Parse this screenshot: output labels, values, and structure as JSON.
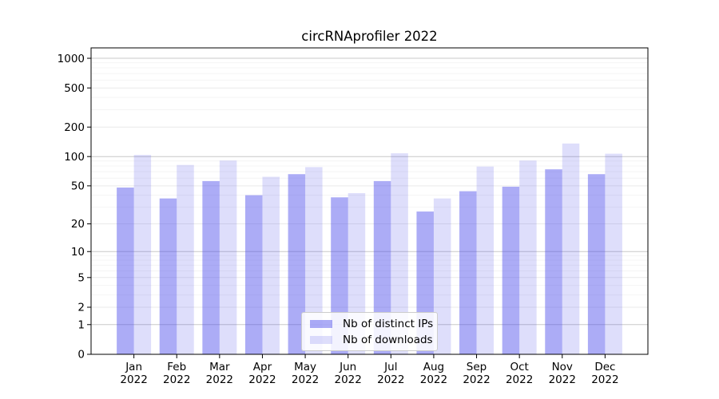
{
  "chart_data": {
    "type": "bar",
    "title": "circRNAprofiler 2022",
    "categories": [
      "Jan 2022",
      "Feb 2022",
      "Mar 2022",
      "Apr 2022",
      "May 2022",
      "Jun 2022",
      "Jul 2022",
      "Aug 2022",
      "Sep 2022",
      "Oct 2022",
      "Nov 2022",
      "Dec 2022"
    ],
    "series": [
      {
        "name": "Nb of distinct IPs",
        "color": "rgba(70,70,235,0.45)",
        "values": [
          48,
          37,
          56,
          40,
          66,
          38,
          56,
          27,
          44,
          49,
          74,
          66
        ]
      },
      {
        "name": "Nb of downloads",
        "color": "rgba(70,70,235,0.18)",
        "values": [
          104,
          82,
          91,
          62,
          78,
          42,
          108,
          37,
          79,
          91,
          136,
          107
        ]
      }
    ],
    "xlabel": "",
    "ylabel": "",
    "yscale": "log1p",
    "yticks": [
      0,
      1,
      2,
      5,
      10,
      20,
      50,
      100,
      200,
      500,
      1000
    ],
    "ylim": [
      0,
      1275
    ],
    "grid": true,
    "legend_position": "lower center",
    "colors": {
      "major_grid": "#c8c8c8",
      "mid_grid": "#e9e9e9",
      "minor_grid": "#f4f4f4",
      "spine": "#000000",
      "text": "#000000"
    }
  }
}
